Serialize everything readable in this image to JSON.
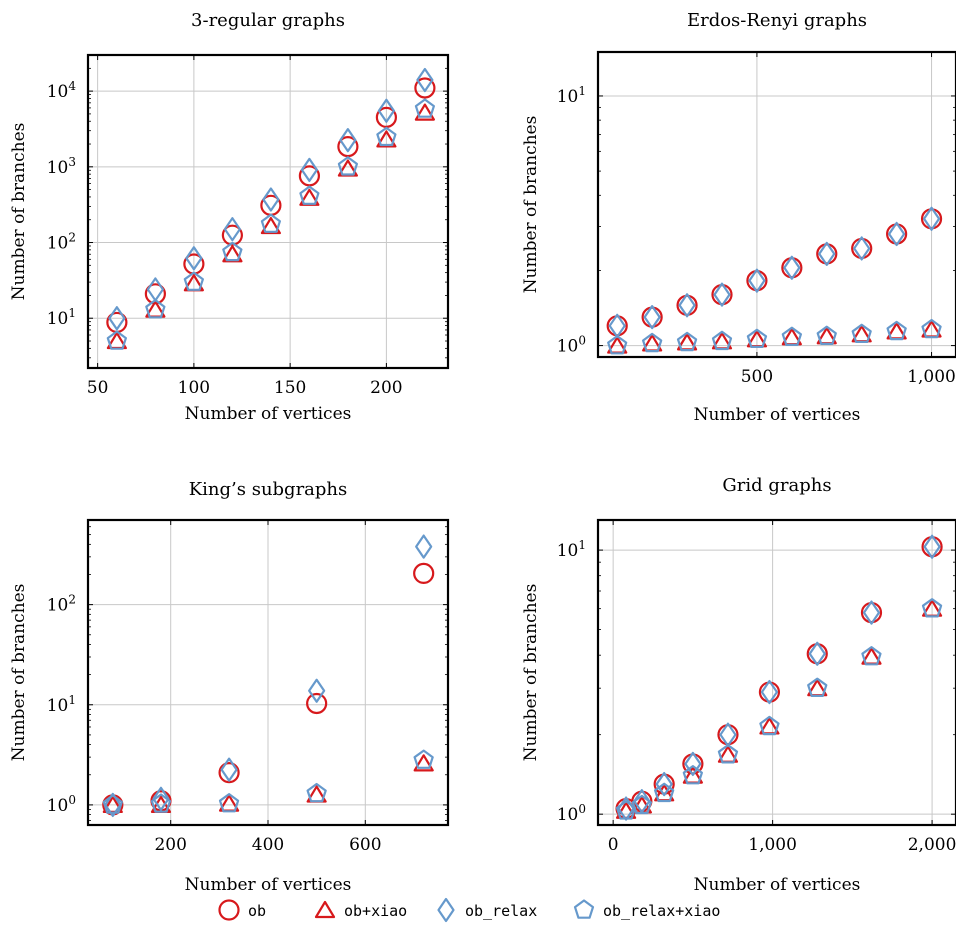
{
  "colors": {
    "red": "#d7191c",
    "blue": "#6699cc",
    "grid": "#c8c8c8"
  },
  "legend": [
    {
      "label": "ob",
      "marker": "circle",
      "color": "#d7191c"
    },
    {
      "label": "ob+xiao",
      "marker": "triangle",
      "color": "#d7191c"
    },
    {
      "label": "ob_relax",
      "marker": "diamond",
      "color": "#6699cc"
    },
    {
      "label": "ob_relax+xiao",
      "marker": "pentagon",
      "color": "#6699cc"
    }
  ],
  "chart_data": [
    {
      "type": "scatter",
      "title": "3-regular graphs",
      "xlabel": "Number of vertices",
      "ylabel": "Number of branches",
      "yscale": "log",
      "xlim": [
        45,
        232
      ],
      "ylim": [
        2.2,
        30000
      ],
      "xticks": [
        50,
        100,
        150,
        200
      ],
      "xtick_labels": [
        "50",
        "100",
        "150",
        "200"
      ],
      "yticks": [
        10,
        100,
        1000,
        10000
      ],
      "ytick_labels": [
        "10^1",
        "10^2",
        "10^3",
        "10^4"
      ],
      "x_grid": true,
      "y_grid": true,
      "series": [
        {
          "name": "ob",
          "x": [
            60,
            80,
            100,
            120,
            140,
            160,
            180,
            200,
            220
          ],
          "y": [
            8.8,
            21,
            52,
            125,
            310,
            760,
            1850,
            4500,
            11000
          ]
        },
        {
          "name": "ob+xiao",
          "x": [
            60,
            80,
            100,
            120,
            140,
            160,
            180,
            200,
            220
          ],
          "y": [
            5,
            13,
            29,
            70,
            165,
            390,
            950,
            2300,
            5200
          ]
        },
        {
          "name": "ob_relax",
          "x": [
            60,
            80,
            100,
            120,
            140,
            160,
            180,
            200,
            220
          ],
          "y": [
            10,
            24,
            62,
            150,
            370,
            910,
            2250,
            5500,
            14000
          ]
        },
        {
          "name": "ob_relax+xiao",
          "x": [
            60,
            80,
            100,
            120,
            140,
            160,
            180,
            200,
            220
          ],
          "y": [
            5,
            13,
            30,
            74,
            175,
            410,
            1000,
            2450,
            5800
          ]
        }
      ]
    },
    {
      "type": "scatter",
      "title": "Erdos-Renyi graphs",
      "xlabel": "Number of vertices",
      "ylabel": "Number of branches",
      "yscale": "log",
      "xlim": [
        45,
        1070
      ],
      "ylim": [
        0.9,
        15
      ],
      "xticks": [
        500,
        1000
      ],
      "xtick_labels": [
        "500",
        "1,000"
      ],
      "yticks": [
        1,
        10
      ],
      "ytick_labels": [
        "10^0",
        "10^1"
      ],
      "x_grid": true,
      "y_grid": true,
      "series": [
        {
          "name": "ob",
          "x": [
            100,
            200,
            300,
            400,
            500,
            600,
            700,
            800,
            900,
            1000
          ],
          "y": [
            1.2,
            1.3,
            1.45,
            1.6,
            1.82,
            2.05,
            2.33,
            2.45,
            2.8,
            3.22
          ]
        },
        {
          "name": "ob+xiao",
          "x": [
            100,
            200,
            300,
            400,
            500,
            600,
            700,
            800,
            900,
            1000
          ],
          "y": [
            1.0,
            1.02,
            1.03,
            1.04,
            1.06,
            1.08,
            1.09,
            1.11,
            1.14,
            1.16
          ]
        },
        {
          "name": "ob_relax",
          "x": [
            100,
            200,
            300,
            400,
            500,
            600,
            700,
            800,
            900,
            1000
          ],
          "y": [
            1.2,
            1.3,
            1.45,
            1.6,
            1.82,
            2.05,
            2.33,
            2.45,
            2.8,
            3.22
          ]
        },
        {
          "name": "ob_relax+xiao",
          "x": [
            100,
            200,
            300,
            400,
            500,
            600,
            700,
            800,
            900,
            1000
          ],
          "y": [
            1.0,
            1.02,
            1.03,
            1.04,
            1.06,
            1.08,
            1.09,
            1.11,
            1.14,
            1.16
          ]
        }
      ]
    },
    {
      "type": "scatter",
      "title": "King’s subgraphs",
      "xlabel": "Number of vertices",
      "ylabel": "Number of branches",
      "yscale": "log",
      "xlim": [
        30,
        770
      ],
      "ylim": [
        0.63,
        700
      ],
      "xticks": [
        200,
        400,
        600
      ],
      "xtick_labels": [
        "200",
        "400",
        "600"
      ],
      "yticks": [
        1,
        10,
        100
      ],
      "ytick_labels": [
        "10^0",
        "10^1",
        "10^2"
      ],
      "x_grid": true,
      "y_grid": true,
      "series": [
        {
          "name": "ob",
          "x": [
            81,
            180,
            320,
            500,
            720
          ],
          "y": [
            1.0,
            1.1,
            2.1,
            10.3,
            205
          ]
        },
        {
          "name": "ob+xiao",
          "x": [
            81,
            180,
            320,
            500,
            720
          ],
          "y": [
            1.0,
            1.0,
            1.03,
            1.27,
            2.6
          ]
        },
        {
          "name": "ob_relax",
          "x": [
            81,
            180,
            320,
            500,
            720
          ],
          "y": [
            1.0,
            1.15,
            2.25,
            13.8,
            380
          ]
        },
        {
          "name": "ob_relax+xiao",
          "x": [
            81,
            180,
            320,
            500,
            720
          ],
          "y": [
            1.0,
            1.02,
            1.03,
            1.3,
            2.8
          ]
        }
      ]
    },
    {
      "type": "scatter",
      "title": "Grid graphs",
      "xlabel": "Number of vertices",
      "ylabel": "Number of branches",
      "yscale": "log",
      "xlim": [
        -95,
        2150
      ],
      "ylim": [
        0.91,
        13
      ],
      "xticks": [
        0,
        1000,
        2000
      ],
      "xtick_labels": [
        "0",
        "1,000",
        "2,000"
      ],
      "yticks": [
        1,
        10
      ],
      "ytick_labels": [
        "10^0",
        "10^1"
      ],
      "x_grid": true,
      "y_grid": true,
      "series": [
        {
          "name": "ob",
          "x": [
            81,
            180,
            320,
            500,
            720,
            980,
            1280,
            1620,
            2000
          ],
          "y": [
            1.05,
            1.12,
            1.3,
            1.55,
            2.0,
            2.9,
            4.05,
            5.8,
            10.3
          ]
        },
        {
          "name": "ob+xiao",
          "x": [
            81,
            180,
            320,
            500,
            720,
            980,
            1280,
            1620,
            2000
          ],
          "y": [
            1.03,
            1.08,
            1.2,
            1.4,
            1.68,
            2.15,
            3.0,
            3.95,
            6.0
          ]
        },
        {
          "name": "ob_relax",
          "x": [
            81,
            180,
            320,
            500,
            720,
            980,
            1280,
            1620,
            2000
          ],
          "y": [
            1.05,
            1.12,
            1.3,
            1.55,
            2.0,
            2.9,
            4.05,
            5.8,
            10.3
          ]
        },
        {
          "name": "ob_relax+xiao",
          "x": [
            81,
            180,
            320,
            500,
            720,
            980,
            1280,
            1620,
            2000
          ],
          "y": [
            1.03,
            1.08,
            1.2,
            1.4,
            1.68,
            2.15,
            3.0,
            3.95,
            6.0
          ]
        }
      ]
    }
  ]
}
